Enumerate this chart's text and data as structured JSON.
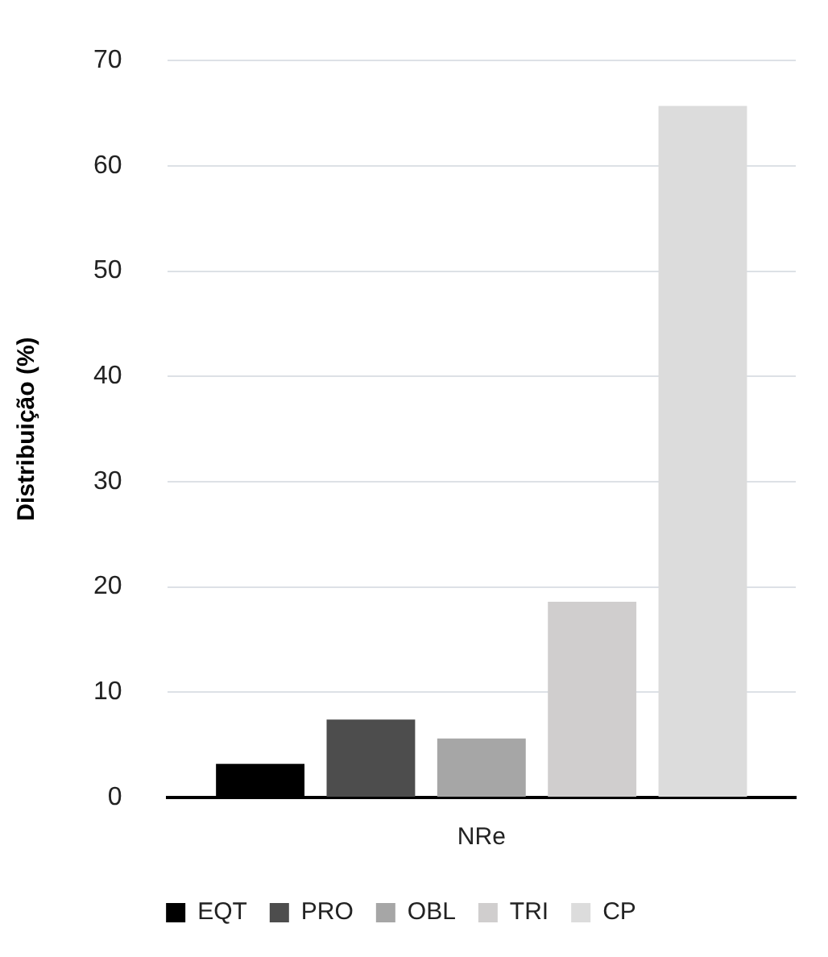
{
  "chart_data": {
    "type": "bar",
    "ylabel": "Distribuição (%)",
    "categories": [
      "NRe"
    ],
    "series": [
      {
        "name": "EQT",
        "color": "#000000",
        "values": [
          3.2
        ]
      },
      {
        "name": "PRO",
        "color": "#4d4d4d",
        "values": [
          7.4
        ]
      },
      {
        "name": "OBL",
        "color": "#a6a6a6",
        "values": [
          5.6
        ]
      },
      {
        "name": "TRI",
        "color": "#d0cece",
        "values": [
          18.6
        ]
      },
      {
        "name": "CP",
        "color": "#dcdcdc",
        "values": [
          65.7
        ]
      }
    ],
    "ylim": [
      0,
      70
    ],
    "yticks": [
      0,
      10,
      20,
      30,
      40,
      50,
      60,
      70
    ],
    "grid": "y",
    "legend": "bottom"
  }
}
